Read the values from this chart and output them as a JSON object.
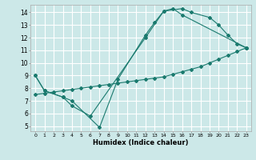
{
  "title": "",
  "xlabel": "Humidex (Indice chaleur)",
  "bg_color": "#cce8e8",
  "grid_color": "#ffffff",
  "line_color": "#1a7a6e",
  "xlim": [
    -0.5,
    23.5
  ],
  "ylim": [
    4.6,
    14.6
  ],
  "xticks": [
    0,
    1,
    2,
    3,
    4,
    5,
    6,
    7,
    8,
    9,
    10,
    11,
    12,
    13,
    14,
    15,
    16,
    17,
    18,
    19,
    20,
    21,
    22,
    23
  ],
  "yticks": [
    5,
    6,
    7,
    8,
    9,
    10,
    11,
    12,
    13,
    14
  ],
  "line1_x": [
    0,
    1,
    3,
    4,
    7,
    9,
    12,
    13,
    14,
    16,
    17,
    19,
    20,
    21,
    22,
    23
  ],
  "line1_y": [
    9.0,
    7.8,
    7.3,
    7.0,
    4.9,
    8.7,
    12.2,
    13.2,
    14.1,
    14.3,
    14.0,
    13.6,
    13.0,
    12.2,
    11.5,
    11.2
  ],
  "line2_x": [
    0,
    1,
    3,
    4,
    6,
    12,
    14,
    15,
    16,
    23
  ],
  "line2_y": [
    9.0,
    7.8,
    7.3,
    6.6,
    5.8,
    12.0,
    14.1,
    14.3,
    13.8,
    11.2
  ],
  "line3_x": [
    0,
    1,
    2,
    3,
    4,
    5,
    6,
    7,
    8,
    9,
    10,
    11,
    12,
    13,
    14,
    15,
    16,
    17,
    18,
    19,
    20,
    21,
    22,
    23
  ],
  "line3_y": [
    7.5,
    7.6,
    7.7,
    7.8,
    7.9,
    8.0,
    8.1,
    8.2,
    8.3,
    8.4,
    8.5,
    8.6,
    8.7,
    8.8,
    8.9,
    9.1,
    9.3,
    9.5,
    9.7,
    10.0,
    10.3,
    10.6,
    10.9,
    11.2
  ]
}
